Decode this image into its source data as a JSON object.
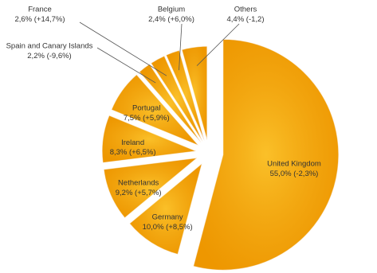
{
  "chart_data": {
    "type": "pie",
    "categories": [
      "United Kingdom",
      "Germany",
      "Netherlands",
      "Ireland",
      "Portugal",
      "Spain and Canary Islands",
      "France",
      "Belgium",
      "Others"
    ],
    "values": [
      55.0,
      10.0,
      9.2,
      8.3,
      7.5,
      2.2,
      2.6,
      2.4,
      4.4
    ],
    "value_labels": [
      "55,0%",
      "10,0%",
      "9,2%",
      "8,3%",
      "7,5%",
      "2,2%",
      "2,6%",
      "2,4%",
      "4,4%"
    ],
    "changes": [
      "(-2,3%)",
      "(+8,5%)",
      "(+5,7%)",
      "(+6,5%)",
      "(+5,9%)",
      "(-9,6%)",
      "(+14,7%)",
      "(+6,0%)",
      "(-1,2)"
    ],
    "color": "#f5a300"
  }
}
